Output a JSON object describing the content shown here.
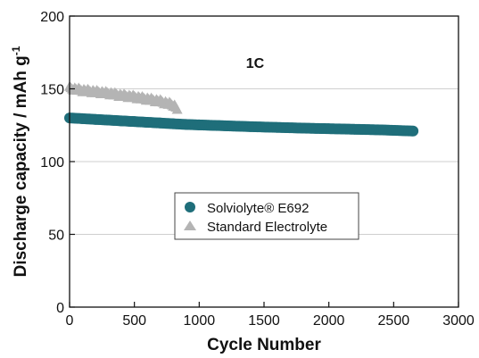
{
  "chart_data": {
    "type": "scatter",
    "xlabel": "Cycle Number",
    "ylabel": "Discharge capacity / mAh g",
    "ylabel_superscript": "-1",
    "annotation": "1C",
    "xlim": [
      0,
      3000
    ],
    "ylim": [
      0,
      200
    ],
    "xticks": [
      0,
      500,
      1000,
      1500,
      2000,
      2500,
      3000
    ],
    "yticks": [
      0,
      50,
      100,
      150,
      200
    ],
    "grid": "horizontal",
    "legend_position": "center",
    "series": [
      {
        "name": "Solviolyte® E692",
        "color": "#1f6e7a",
        "marker": "circle",
        "x": [
          0,
          100,
          200,
          300,
          400,
          500,
          600,
          700,
          800,
          900,
          1000,
          1200,
          1400,
          1600,
          1800,
          2000,
          2200,
          2400,
          2650
        ],
        "y": [
          130,
          129.5,
          129,
          128.5,
          128,
          127.5,
          127,
          126.5,
          126,
          125.5,
          125.2,
          124.6,
          124,
          123.5,
          123,
          122.6,
          122.2,
          121.8,
          121
        ]
      },
      {
        "name": "Standard Electrolyte",
        "color": "#b4b4b4",
        "marker": "triangle",
        "x": [
          0,
          100,
          200,
          300,
          400,
          500,
          600,
          700,
          800,
          830
        ],
        "y": [
          150,
          148.5,
          147.5,
          146.5,
          145,
          144,
          142.5,
          141,
          138.5,
          136
        ]
      }
    ]
  }
}
